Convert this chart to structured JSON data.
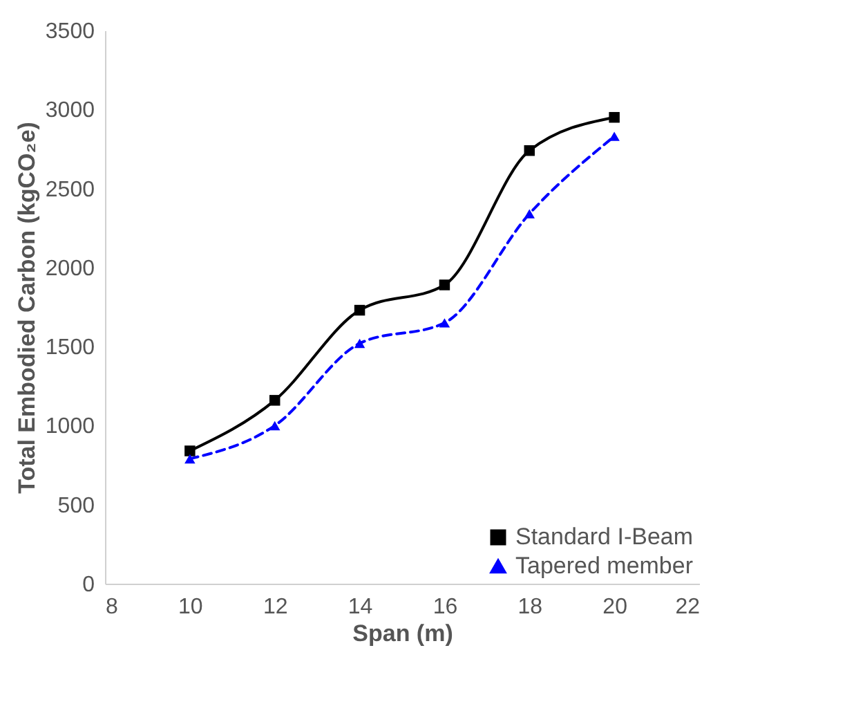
{
  "chart_data": {
    "type": "line",
    "xlabel": "Span (m)",
    "ylabel": "Total Embodied Carbon (kgCO₂e)",
    "x": [
      10,
      12,
      14,
      16,
      18,
      20
    ],
    "series": [
      {
        "name": "Standard I-Beam",
        "color": "#000000",
        "marker": "square",
        "line_style": "solid",
        "values": [
          840,
          1160,
          1730,
          1890,
          2740,
          2950
        ]
      },
      {
        "name": "Tapered member",
        "color": "#0000ff",
        "marker": "triangle",
        "line_style": "dashed",
        "values": [
          790,
          1000,
          1520,
          1650,
          2340,
          2830
        ]
      }
    ],
    "xlim": [
      8,
      22
    ],
    "xticks": [
      8,
      10,
      12,
      14,
      16,
      18,
      20,
      22
    ],
    "ylim": [
      0,
      3500
    ],
    "yticks": [
      0,
      500,
      1000,
      1500,
      2000,
      2500,
      3000,
      3500
    ],
    "grid": false,
    "legend": "bottom right"
  }
}
